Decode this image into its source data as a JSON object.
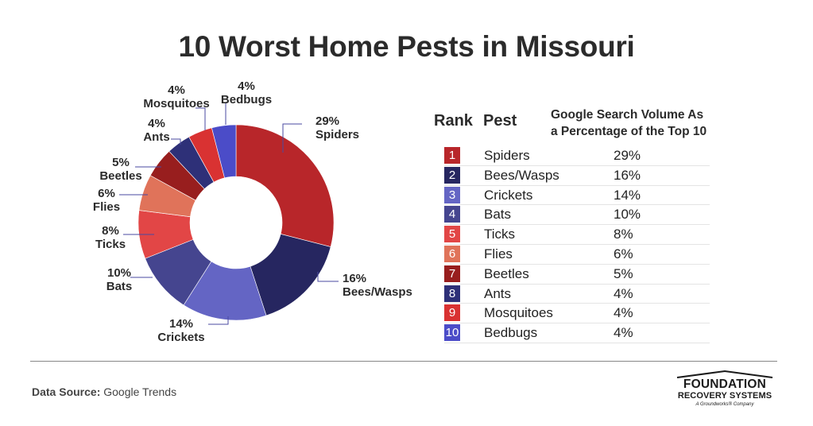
{
  "title": "10 Worst Home Pests in Missouri",
  "chart_data": {
    "type": "pie",
    "title": "10 Worst Home Pests in Missouri",
    "slices": [
      {
        "rank": "1",
        "label": "Spiders",
        "value": 29,
        "display": "29%",
        "color": "#b8262a"
      },
      {
        "rank": "2",
        "label": "Bees/Wasps",
        "value": 16,
        "display": "16%",
        "color": "#262660"
      },
      {
        "rank": "3",
        "label": "Crickets",
        "value": 14,
        "display": "14%",
        "color": "#6465c4"
      },
      {
        "rank": "4",
        "label": "Bats",
        "value": 10,
        "display": "10%",
        "color": "#45458f"
      },
      {
        "rank": "5",
        "label": "Ticks",
        "value": 8,
        "display": "8%",
        "color": "#e24646"
      },
      {
        "rank": "6",
        "label": "Flies",
        "value": 6,
        "display": "6%",
        "color": "#e0735a"
      },
      {
        "rank": "7",
        "label": "Beetles",
        "value": 5,
        "display": "5%",
        "color": "#981e1e"
      },
      {
        "rank": "8",
        "label": "Ants",
        "value": 4,
        "display": "4%",
        "color": "#2e3078"
      },
      {
        "rank": "9",
        "label": "Mosquitoes",
        "value": 4,
        "display": "4%",
        "color": "#d93232"
      },
      {
        "rank": "10",
        "label": "Bedbugs",
        "value": 4,
        "display": "4%",
        "color": "#4b4cc8"
      }
    ]
  },
  "table": {
    "rank_header": "Rank",
    "pest_header": "Pest",
    "volume_header_line1": "Google Search Volume As",
    "volume_header_line2": "a Percentage of the Top 10"
  },
  "footer": {
    "source_label": "Data Source:",
    "source_value": "Google Trends"
  },
  "logo": {
    "line1": "FOUNDATION",
    "line2": "RECOVERY SYSTEMS",
    "tagline": "A Groundworks® Company"
  }
}
